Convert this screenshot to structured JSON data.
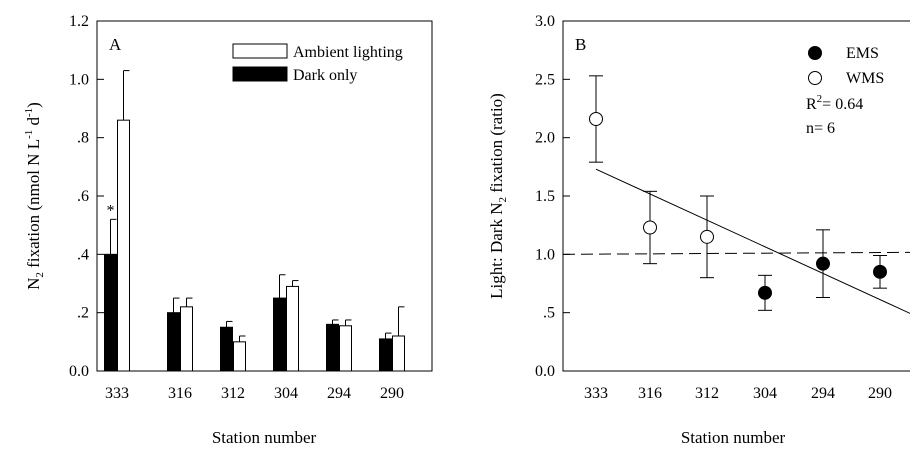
{
  "chart_data": [
    {
      "type": "bar",
      "panel_label": "A",
      "xlabel": "Station number",
      "ylabel": {
        "prefix": "N",
        "sub": "2",
        "middle": " fixation (nmol N L",
        "sup1": "-1",
        "d": " d",
        "sup2": "-1",
        "suffix": ")"
      },
      "ylim": [
        0,
        1.2
      ],
      "yticks": [
        {
          "v": 0,
          "label": "0.0"
        },
        {
          "v": 0.2,
          "label": ".2"
        },
        {
          "v": 0.4,
          "label": ".4"
        },
        {
          "v": 0.6,
          "label": ".6"
        },
        {
          "v": 0.8,
          "label": ".8"
        },
        {
          "v": 1.0,
          "label": "1.0"
        },
        {
          "v": 1.2,
          "label": "1.2"
        }
      ],
      "categories": [
        "333",
        "316",
        "312",
        "304",
        "294",
        "290"
      ],
      "series": [
        {
          "name": "Dark only",
          "fill": "#000000",
          "values": [
            0.4,
            0.2,
            0.15,
            0.25,
            0.16,
            0.11
          ],
          "errors": [
            0.12,
            0.05,
            0.02,
            0.08,
            0.015,
            0.02
          ]
        },
        {
          "name": "Ambient lighting",
          "fill": "#ffffff",
          "values": [
            0.86,
            0.22,
            0.1,
            0.29,
            0.155,
            0.12
          ],
          "errors": [
            0.17,
            0.03,
            0.02,
            0.02,
            0.02,
            0.1
          ]
        }
      ],
      "legend_order": [
        "Ambient lighting",
        "Dark only"
      ],
      "annotation": {
        "text": "*",
        "category": "333"
      }
    },
    {
      "type": "scatter",
      "panel_label": "B",
      "xlabel": "Station number",
      "ylabel": {
        "prefix": "Light: Dark N",
        "sub": "2",
        "suffix": " fixation (ratio)"
      },
      "ylim": [
        0,
        3.0
      ],
      "yticks": [
        {
          "v": 0,
          "label": "0.0"
        },
        {
          "v": 0.5,
          "label": ".5"
        },
        {
          "v": 1.0,
          "label": "1.0"
        },
        {
          "v": 1.5,
          "label": "1.5"
        },
        {
          "v": 2.0,
          "label": "2.0"
        },
        {
          "v": 2.5,
          "label": "2.5"
        },
        {
          "v": 3.0,
          "label": "3.0"
        }
      ],
      "categories": [
        "333",
        "316",
        "312",
        "304",
        "294",
        "290"
      ],
      "series": [
        {
          "name": "EMS",
          "fill": "#000000",
          "points": [
            {
              "x": "304",
              "y": 0.67,
              "err": 0.15
            },
            {
              "x": "294",
              "y": 0.92,
              "err": 0.29
            },
            {
              "x": "290",
              "y": 0.85,
              "err": 0.14
            }
          ]
        },
        {
          "name": "WMS",
          "fill": "#ffffff",
          "points": [
            {
              "x": "333",
              "y": 2.16,
              "err": 0.37
            },
            {
              "x": "316",
              "y": 1.23,
              "err": 0.31
            },
            {
              "x": "312",
              "y": 1.15,
              "err": 0.35
            }
          ]
        }
      ],
      "regression": {
        "start_y": 1.73,
        "end_y": 0.49
      },
      "reference_line": {
        "y": 1.0,
        "style": "dashed"
      },
      "stats": {
        "r2_prefix": "R",
        "r2_sup": "2",
        "r2_value": "= 0.64",
        "n": "n= 6"
      }
    }
  ]
}
